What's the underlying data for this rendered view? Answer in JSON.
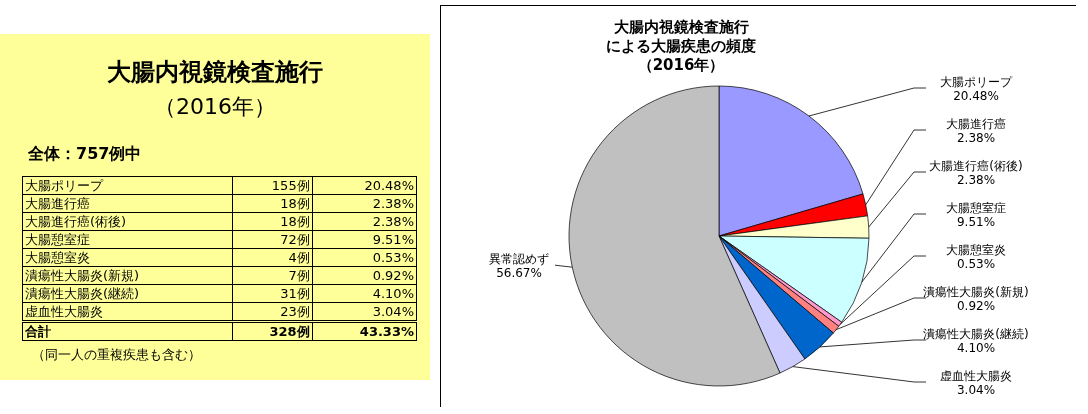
{
  "chart_data": [
    {
      "type": "other",
      "title": "大腸内視鏡検査施行",
      "subtitle": "（2016年）",
      "annotations": [
        "全体：757例中",
        "（同一人の重複疾患も含む）"
      ],
      "categories": [
        "大腸ポリープ",
        "大腸進行癌",
        "大腸進行癌(術後)",
        "大腸憩室症",
        "大腸憩室炎",
        "潰瘍性大腸炎(新規)",
        "潰瘍性大腸炎(継続)",
        "虚血性大腸炎",
        "合計"
      ],
      "series": [
        {
          "values": [
            155,
            18,
            18,
            72,
            4,
            7,
            31,
            23,
            328
          ],
          "value_labels": [
            "155例",
            "18例",
            "18例",
            "72例",
            "4例",
            "7例",
            "31例",
            "23例",
            "328例"
          ]
        },
        {
          "values": [
            20.48,
            2.38,
            2.38,
            9.51,
            0.53,
            0.92,
            4.1,
            3.04,
            43.33
          ],
          "value_labels": [
            "20.48%",
            "2.38%",
            "2.38%",
            "9.51%",
            "0.53%",
            "0.92%",
            "4.10%",
            "3.04%",
            "43.33%"
          ]
        }
      ]
    },
    {
      "type": "pie",
      "title": "大腸内視鏡検査施行による大腸疾患の頻度",
      "subtitle": "（2016年）",
      "categories": [
        "大腸ポリープ",
        "大腸進行癌",
        "大腸進行癌(術後)",
        "大腸憩室症",
        "大腸憩室炎",
        "潰瘍性大腸炎(新規)",
        "潰瘍性大腸炎(継続)",
        "虚血性大腸炎",
        "異常認めず"
      ],
      "values": [
        20.48,
        2.38,
        2.38,
        9.51,
        0.53,
        0.92,
        4.1,
        3.04,
        56.67
      ],
      "value_labels": [
        "20.48%",
        "2.38%",
        "2.38%",
        "9.51%",
        "0.53%",
        "0.92%",
        "4.10%",
        "3.04%",
        "56.67%"
      ],
      "colors": [
        "#9999ff",
        "#ff0000",
        "#ffffcc",
        "#ccffff",
        "#ff99cc",
        "#ff8080",
        "#0066cc",
        "#ccccff",
        "#c0c0c0"
      ],
      "legend": "right"
    }
  ]
}
